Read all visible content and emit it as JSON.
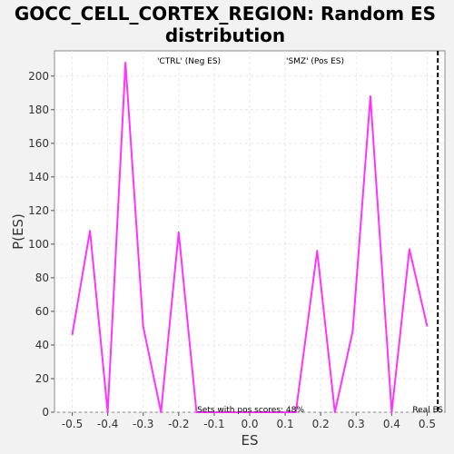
{
  "chart_data": {
    "type": "line",
    "title_line1": "GOCC_CELL_CORTEX_REGION: Random ES",
    "title_line2": "distribution",
    "xlabel": "ES",
    "ylabel": "P(ES)",
    "xlim": [
      -0.55,
      0.55
    ],
    "ylim": [
      0,
      215
    ],
    "x_ticks": [
      -0.5,
      -0.4,
      -0.3,
      -0.2,
      -0.1,
      0.0,
      0.1,
      0.2,
      0.3,
      0.4,
      0.5
    ],
    "x_tick_labels": [
      "-0.5",
      "-0.4",
      "-0.3",
      "-0.2",
      "-0.1",
      "0.0",
      "0.1",
      "0.2",
      "0.3",
      "0.4",
      "0.5"
    ],
    "y_ticks": [
      0,
      20,
      40,
      60,
      80,
      100,
      120,
      140,
      160,
      180,
      200
    ],
    "y_tick_labels": [
      "0",
      "20",
      "40",
      "60",
      "80",
      "100",
      "120",
      "140",
      "160",
      "180",
      "200"
    ],
    "grid": true,
    "series": [
      {
        "color": "#ff33ff",
        "x": [
          -0.5,
          -0.45,
          -0.4,
          -0.35,
          -0.3,
          -0.25,
          -0.2,
          -0.15,
          -0.1,
          0.0,
          0.13,
          0.19,
          0.24,
          0.29,
          0.34,
          0.4,
          0.45,
          0.5
        ],
        "y": [
          46,
          108,
          0,
          208,
          51,
          0,
          107,
          0,
          0,
          0,
          0,
          96,
          0,
          48,
          188,
          0,
          97,
          51
        ]
      }
    ],
    "real_es": 0.53,
    "annotations": {
      "neg_label": "'CTRL' (Neg ES)",
      "neg_color": "#0000cc",
      "pos_label": "'SMZ' (Pos ES)",
      "pos_color": "#cc0000",
      "pos_scores_text": "Sets with pos scores: 48%",
      "real_es_text": "Real ES"
    }
  }
}
